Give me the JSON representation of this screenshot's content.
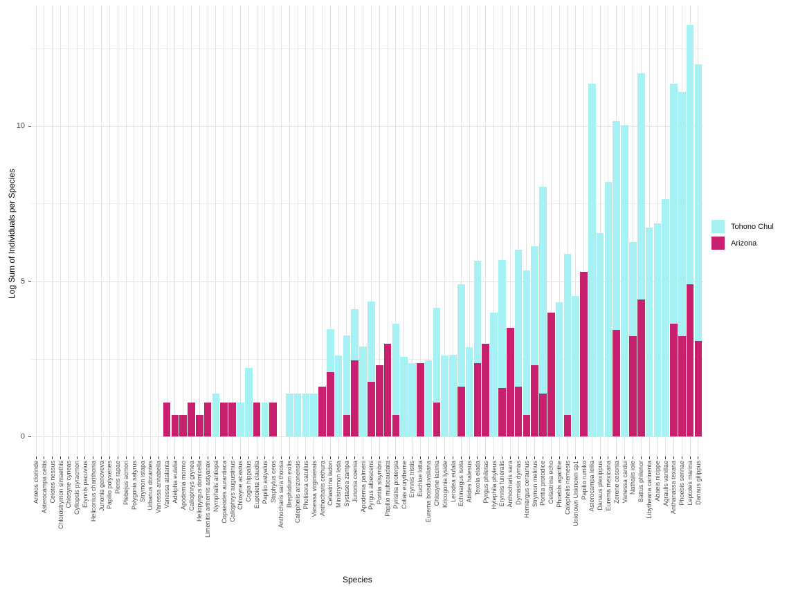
{
  "figure": {
    "xlabel": "Species",
    "ylabel": "Log Sum of Individuals per Species"
  },
  "chart_data": {
    "type": "bar",
    "overlay": "identity",
    "title": "",
    "xlabel": "Species",
    "ylabel": "Log Sum of Individuals per Species",
    "ylim": [
      0,
      13.9
    ],
    "yticks": [
      0,
      5,
      10
    ],
    "yticks_minor": [
      2.5,
      7.5,
      12.5
    ],
    "grid": "on",
    "legend_position": "right",
    "legend": [
      {
        "label": "Tohono Chul",
        "color": "#a5f1f4",
        "icon": "legend-swatch-cyan"
      },
      {
        "label": "Arizona",
        "color": "#c6206e",
        "icon": "legend-swatch-magenta"
      }
    ],
    "categories": [
      "Anteos clorinde",
      "Asterocampa celtis",
      "Celotes nessus",
      "Chlorostrymon simaethis",
      "Chlosyne cyneas",
      "Cyllopsis pyracmon",
      "Erynnis pacuvius",
      "Heliconius charithonia",
      "Junonia genoveva",
      "Papilio polyxenes",
      "Pieris rapae",
      "Plebejus acmon",
      "Polygonia satyrus",
      "Strymon istapa",
      "Urbanus dorantes",
      "Vanessa annabella",
      "Vanessa atalanta",
      "Adelpha eulalia",
      "Apodemia mormo",
      "Callophrys grynea",
      "Heliopyrgus domicella",
      "Limenitis arthemis astyanax",
      "Nymphalis antiopa",
      "Copaeodes aurantiaca",
      "Callophrys augustinus",
      "Chlosyne acastus",
      "Cogia hippalus",
      "Euptoieta claudia",
      "Papilio astyalus",
      "Staphylus ceos",
      "Anthocharis sara thoosa",
      "Brephidium exilis",
      "Calephelis arizonensis",
      "Pholisora catullus",
      "Vanessa virginiensis",
      "Anthocharis cethura",
      "Celastrina ladon",
      "Ministrymon leda",
      "Systasea zampa",
      "Junonia coenia",
      "Apodemia palmerii",
      "Pyrgus albescens",
      "Pontia sisymbrii",
      "Papilio multicaudata",
      "Pyrisitia proterpia",
      "Colias eurytheme",
      "Erynnis tristis",
      "Euchloe lotta",
      "Eurema boisduvaliana",
      "Chlosyne lacinia",
      "Kricogonia lyside",
      "Lerodea eufala",
      "Echinargus isola",
      "Atlides halesus",
      "Texola elada",
      "Pyrgus philetas",
      "Hylephila phyleus",
      "Erynnis funeralis",
      "Anthocharis sara",
      "Dymasia dymas",
      "Hemiargus ceraunus",
      "Strymon melinus",
      "Pontia protodice",
      "Celastrina echo",
      "Phoebis agarithe",
      "Calephelis nemesis",
      "Unknown Unknown sp1",
      "Papilio rumiko",
      "Asterocampa leilia",
      "Danaus plexippus",
      "Eurema mexicana",
      "Zerene cesonia",
      "Vanessa cardui",
      "Nathalis iole",
      "Battus philenor",
      "Libytheana carinenta",
      "Abaeis nicippe",
      "Agraulis vanillae",
      "Anthanassa texana",
      "Phoebis sennae",
      "Leptotes marina",
      "Danaus gilippus"
    ],
    "series": [
      {
        "name": "Tohono Chul",
        "color": "#a5f1f4",
        "values": [
          0,
          0,
          0,
          0,
          0,
          0,
          0,
          0,
          0,
          0,
          0,
          0,
          0,
          0,
          0,
          0,
          0,
          0,
          0,
          0,
          0,
          0,
          1.39,
          0,
          0,
          1.1,
          2.2,
          0,
          1.1,
          0,
          0,
          1.39,
          1.39,
          1.39,
          1.39,
          0,
          3.46,
          2.61,
          3.25,
          4.09,
          2.9,
          4.35,
          0,
          0,
          3.64,
          2.56,
          2.35,
          0,
          2.45,
          4.14,
          2.6,
          2.62,
          4.89,
          2.87,
          5.65,
          0,
          3.99,
          5.69,
          0,
          6.01,
          5.34,
          6.12,
          8.05,
          0,
          4.31,
          5.87,
          4.52,
          0,
          11.36,
          6.55,
          8.19,
          10.16,
          10.02,
          6.25,
          11.69,
          6.73,
          6.85,
          7.63,
          11.36,
          11.1,
          13.26,
          11.99
        ]
      },
      {
        "name": "Arizona",
        "color": "#c6206e",
        "values": [
          0,
          0,
          0,
          0,
          0,
          0,
          0,
          0,
          0,
          0,
          0,
          0,
          0,
          0,
          0,
          0,
          1.1,
          0.69,
          0.69,
          1.1,
          0.69,
          1.1,
          0,
          1.1,
          1.1,
          0,
          0,
          1.1,
          0,
          1.1,
          0,
          0,
          0,
          0,
          0,
          1.61,
          2.08,
          0,
          0.69,
          2.46,
          0,
          1.75,
          2.3,
          2.99,
          0.69,
          0,
          0,
          2.37,
          0,
          1.1,
          0,
          0,
          1.61,
          0,
          2.37,
          2.99,
          0,
          1.57,
          3.49,
          1.61,
          0.69,
          2.3,
          1.39,
          3.99,
          0,
          0.69,
          0,
          5.3,
          0,
          0,
          0,
          3.42,
          0,
          3.22,
          4.41,
          0,
          0,
          0,
          3.63,
          3.22,
          4.89,
          3.08
        ]
      }
    ]
  }
}
